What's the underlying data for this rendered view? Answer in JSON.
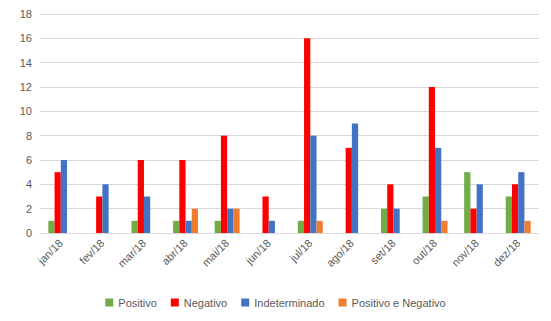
{
  "chart_data": {
    "type": "bar",
    "categories": [
      "jan/18",
      "fev/18",
      "mar/18",
      "abr/18",
      "mai/18",
      "jun/18",
      "jul/18",
      "ago/18",
      "set/18",
      "out/18",
      "nov/18",
      "dez/18"
    ],
    "series": [
      {
        "name": "Positivo",
        "color": "#70ad47",
        "values": [
          1,
          null,
          1,
          1,
          1,
          null,
          1,
          null,
          2,
          3,
          5,
          3
        ]
      },
      {
        "name": "Negativo",
        "color": "#ff0000",
        "values": [
          5,
          3,
          6,
          6,
          8,
          3,
          16,
          7,
          4,
          12,
          2,
          4
        ]
      },
      {
        "name": "Indeterminado",
        "color": "#4472c4",
        "values": [
          6,
          4,
          3,
          1,
          2,
          1,
          8,
          9,
          2,
          7,
          4,
          5
        ]
      },
      {
        "name": "Positivo e Negativo",
        "color": "#ed7d31",
        "values": [
          null,
          null,
          null,
          2,
          2,
          null,
          1,
          null,
          null,
          1,
          null,
          1
        ]
      }
    ],
    "ylim": [
      0,
      18
    ],
    "yticks": [
      0,
      2,
      4,
      6,
      8,
      10,
      12,
      14,
      16,
      18
    ],
    "grid": true,
    "legend": "bottom"
  }
}
